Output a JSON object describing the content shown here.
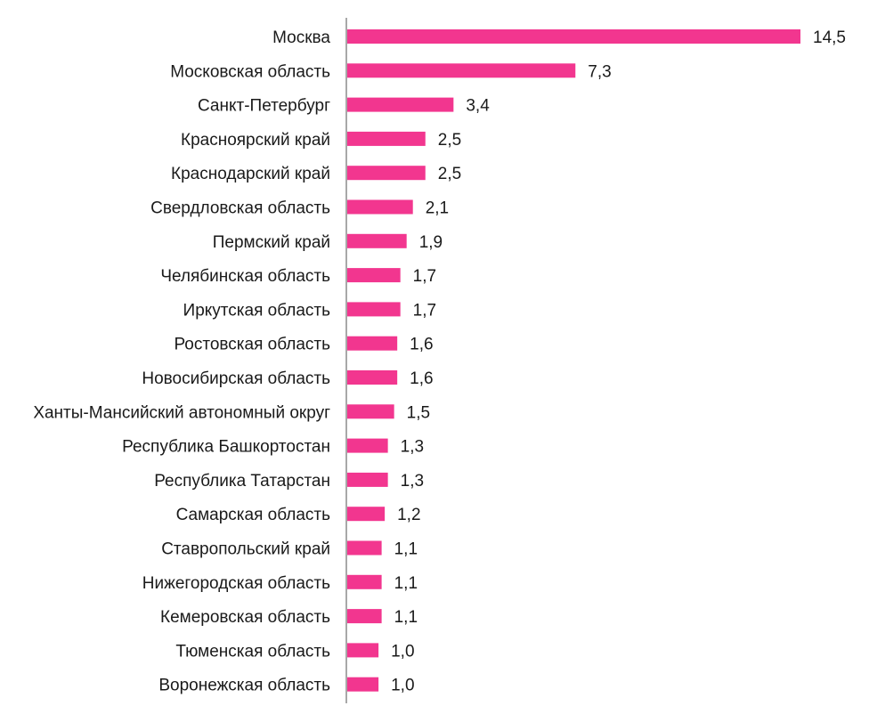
{
  "chart_data": {
    "type": "bar",
    "orientation": "horizontal",
    "title": "",
    "xlabel": "",
    "ylabel": "",
    "categories": [
      "Москва",
      "Московская область",
      "Санкт-Петербург",
      "Красноярский край",
      "Краснодарский край",
      "Свердловская область",
      "Пермский край",
      "Челябинская область",
      "Иркутская область",
      "Ростовская область",
      "Новосибирская область",
      "Ханты-Мансийский автономный округ",
      "Республика Башкортостан",
      "Республика Татарстан",
      "Самарская область",
      "Ставропольский край",
      "Нижегородская область",
      "Кемеровская область",
      "Тюменская область ",
      "Воронежская область"
    ],
    "values": [
      14.5,
      7.3,
      3.4,
      2.5,
      2.5,
      2.1,
      1.9,
      1.7,
      1.7,
      1.6,
      1.6,
      1.5,
      1.3,
      1.3,
      1.2,
      1.1,
      1.1,
      1.1,
      1.0,
      1.0
    ],
    "value_labels": [
      "14,5",
      "7,3",
      "3,4",
      "2,5",
      "2,5",
      "2,1",
      "1,9",
      "1,7",
      "1,7",
      "1,6",
      "1,6",
      "1,5",
      "1,3",
      "1,3",
      "1,2",
      "1,1",
      "1,1",
      "1,1",
      "1,0",
      "1,0"
    ],
    "xlim": [
      0,
      14.5
    ],
    "grid": false,
    "legend": "none",
    "bar_color": "#f2368f",
    "axis_color": "#8c8c8c"
  }
}
